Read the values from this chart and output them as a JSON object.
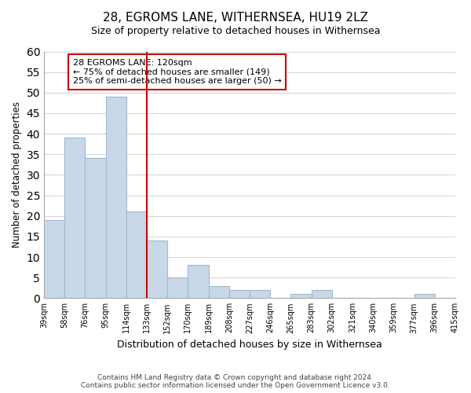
{
  "title": "28, EGROMS LANE, WITHERNSEA, HU19 2LZ",
  "subtitle": "Size of property relative to detached houses in Withernsea",
  "xlabel": "Distribution of detached houses by size in Withernsea",
  "ylabel": "Number of detached properties",
  "bar_values": [
    19,
    39,
    34,
    49,
    21,
    14,
    5,
    8,
    3,
    2,
    2,
    0,
    1,
    2,
    0,
    0,
    0,
    0,
    1,
    0
  ],
  "bin_labels": [
    "39sqm",
    "58sqm",
    "76sqm",
    "95sqm",
    "114sqm",
    "133sqm",
    "152sqm",
    "170sqm",
    "189sqm",
    "208sqm",
    "227sqm",
    "246sqm",
    "265sqm",
    "283sqm",
    "302sqm",
    "321sqm",
    "340sqm",
    "359sqm",
    "377sqm",
    "396sqm",
    "415sqm"
  ],
  "bar_color": "#c8d8e8",
  "bar_edge_color": "#a0b8cc",
  "vline_x": 4.0,
  "vline_color": "#cc0000",
  "ylim": [
    0,
    60
  ],
  "yticks": [
    0,
    5,
    10,
    15,
    20,
    25,
    30,
    35,
    40,
    45,
    50,
    55,
    60
  ],
  "annotation_title": "28 EGROMS LANE: 120sqm",
  "annotation_line1": "← 75% of detached houses are smaller (149)",
  "annotation_line2": "25% of semi-detached houses are larger (50) →",
  "footer_line1": "Contains HM Land Registry data © Crown copyright and database right 2024.",
  "footer_line2": "Contains public sector information licensed under the Open Government Licence v3.0.",
  "background_color": "#ffffff",
  "grid_color": "#d0d8e0"
}
